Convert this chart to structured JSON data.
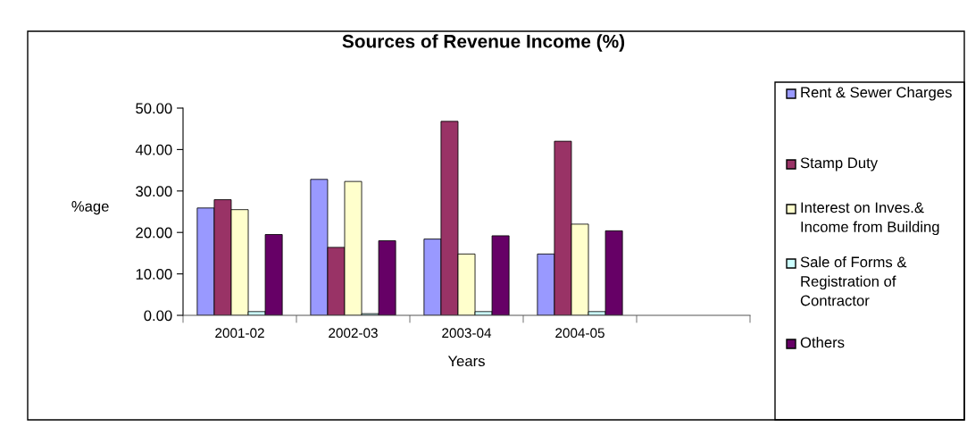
{
  "chart_data": {
    "type": "bar",
    "title": "Sources of Revenue Income (%)",
    "xlabel": "Years",
    "ylabel": "%age",
    "categories": [
      "2001-02",
      "2002-03",
      "2003-04",
      "2004-05",
      null
    ],
    "series": [
      {
        "name": "Rent & Sewer Charges",
        "color": "#9999ff",
        "values": [
          25.9,
          32.8,
          18.4,
          14.8,
          null
        ]
      },
      {
        "name": "Stamp Duty",
        "color": "#993366",
        "values": [
          27.9,
          16.4,
          46.8,
          42.0,
          null
        ]
      },
      {
        "name": "Interest on Inves.& Income from Building",
        "color": "#ffffcc",
        "values": [
          25.5,
          32.3,
          14.8,
          22.0,
          null
        ]
      },
      {
        "name": "Sale of Forms & Registration of Contractor",
        "color": "#ccffff",
        "values": [
          0.9,
          0.4,
          0.9,
          0.9,
          null
        ]
      },
      {
        "name": "Others",
        "color": "#660066",
        "values": [
          19.5,
          18.0,
          19.2,
          20.4,
          null
        ]
      }
    ],
    "ylim": [
      0,
      50
    ],
    "yticks": [
      {
        "value": 0,
        "label": "0.00"
      },
      {
        "value": 10,
        "label": "10.00"
      },
      {
        "value": 20,
        "label": "20.00"
      },
      {
        "value": 30,
        "label": "30.00"
      },
      {
        "value": 40,
        "label": "40.00"
      },
      {
        "value": 50,
        "label": "50.00"
      }
    ],
    "legend": "right",
    "grid": false
  }
}
